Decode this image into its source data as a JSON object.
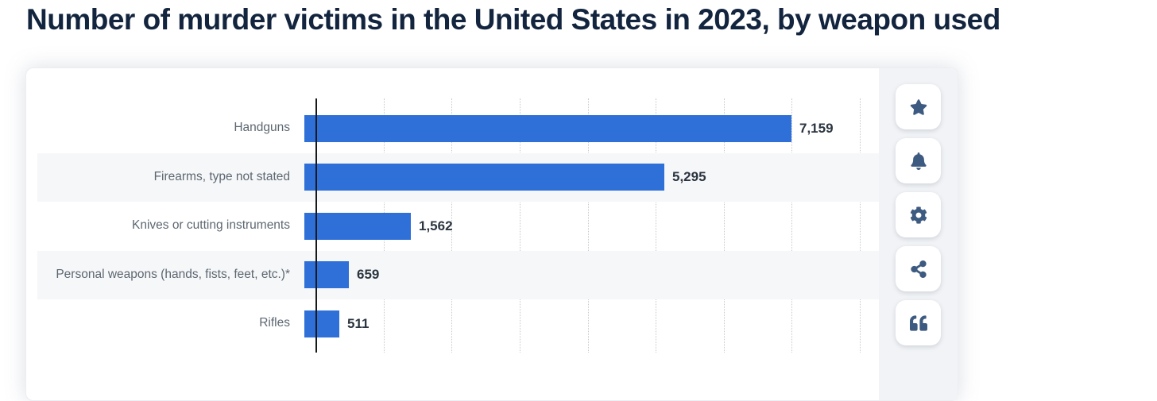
{
  "header": {
    "title": "Number of murder victims in the United States in 2023, by weapon used"
  },
  "chart_data": {
    "type": "bar",
    "orientation": "horizontal",
    "title": "Number of murder victims in the United States in 2023, by weapon used",
    "categories": [
      "Handguns",
      "Firearms, type not stated",
      "Knives or cutting instruments",
      "Personal weapons (hands, fists, feet, etc.)*",
      "Rifles"
    ],
    "values": [
      7159,
      5295,
      1562,
      659,
      511
    ],
    "value_labels": [
      "7,159",
      "5,295",
      "1,562",
      "659",
      "511"
    ],
    "xlabel": "",
    "ylabel": "",
    "xlim": [
      0,
      8000
    ],
    "gridline_interval": 1000,
    "grid": "vertical-dotted",
    "legend": "none",
    "bar_color": "#2e6fd8",
    "striped_rows": [
      2,
      4
    ]
  },
  "toolbar": {
    "buttons": [
      {
        "name": "favorite",
        "icon": "star-icon"
      },
      {
        "name": "notifications",
        "icon": "bell-icon"
      },
      {
        "name": "settings",
        "icon": "gear-icon"
      },
      {
        "name": "share",
        "icon": "share-icon"
      },
      {
        "name": "cite",
        "icon": "quote-icon"
      }
    ]
  },
  "colors": {
    "title_text": "#13243e",
    "bar": "#2e6fd8",
    "axis": "#18191b",
    "gridline": "#c7cacf",
    "category_label": "#5d6771",
    "value_label": "#2b3540",
    "card_background": "#ffffff",
    "sidebar_background": "#f1f3f6",
    "icon": "#3d5a80",
    "row_stripe": "#f6f7f9"
  }
}
